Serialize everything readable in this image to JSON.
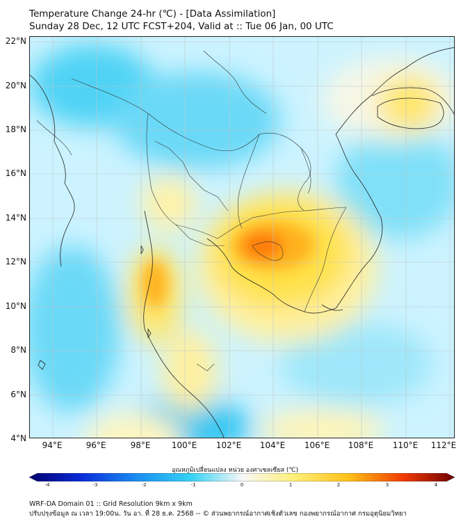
{
  "title": {
    "line1": "Temperature Change 24-hr (℃) - [Data Assimilation]",
    "line2": "Sunday 28 Dec, 12 UTC FCST+204, Valid at :: Tue 06 Jan, 00 UTC"
  },
  "lat_labels": [
    "22°N",
    "20°N",
    "18°N",
    "16°N",
    "14°N",
    "12°N",
    "10°N",
    "8°N",
    "6°N",
    "4°N"
  ],
  "lon_labels": [
    "94°E",
    "96°E",
    "98°E",
    "100°E",
    "102°E",
    "104°E",
    "106°E",
    "108°E",
    "110°E",
    "112°E"
  ],
  "colorbar": {
    "label": "อุณหภูมิเปลี่ยนแปลง หน่วย องศาเซลเซียส (℃)",
    "ticks": [
      "-4",
      "-3",
      "-2",
      "-1",
      "0",
      "1",
      "2",
      "3",
      "4"
    ],
    "min": -4,
    "max": 4
  },
  "footer": {
    "line1": "WRF-DA Domain 01 :: Grid Resolution 9km x 9km",
    "line2": "ปรับปรุงข้อมูล ณ เวลา 19:00น. วัน อา. ที่ 28 ธ.ค. 2568 -- © ส่วนพยากรณ์อากาศเชิงตัวเลข กองพยากรณ์อากาศ กรมอุตุนิยมวิทยา"
  },
  "colors": {
    "cold": "#00b4ee",
    "neutral": "#f6f6f6",
    "warm": "#ffe14a",
    "hot": "#ff6a00"
  }
}
